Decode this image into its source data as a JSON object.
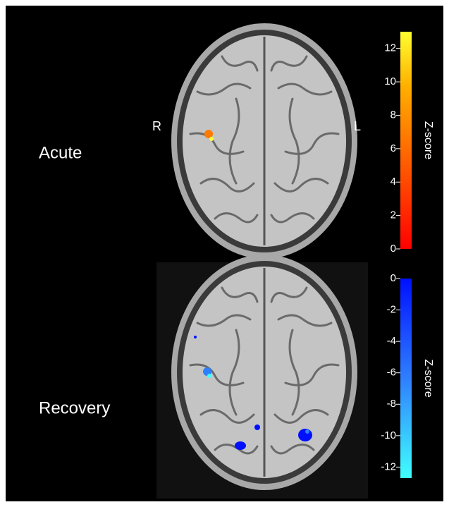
{
  "panels": [
    {
      "label": "Acute",
      "left_side": "R",
      "right_side": "L",
      "colorbar": {
        "title": "Z-score",
        "lim": [
          0,
          13
        ],
        "ticks": [
          0,
          2,
          4,
          6,
          8,
          10,
          12
        ]
      }
    },
    {
      "label": "Recovery",
      "colorbar": {
        "title": "Z-score",
        "lim": [
          0,
          -12.7
        ],
        "ticks": [
          0,
          -2,
          -4,
          -6,
          -8,
          -10,
          -12
        ]
      }
    }
  ]
}
